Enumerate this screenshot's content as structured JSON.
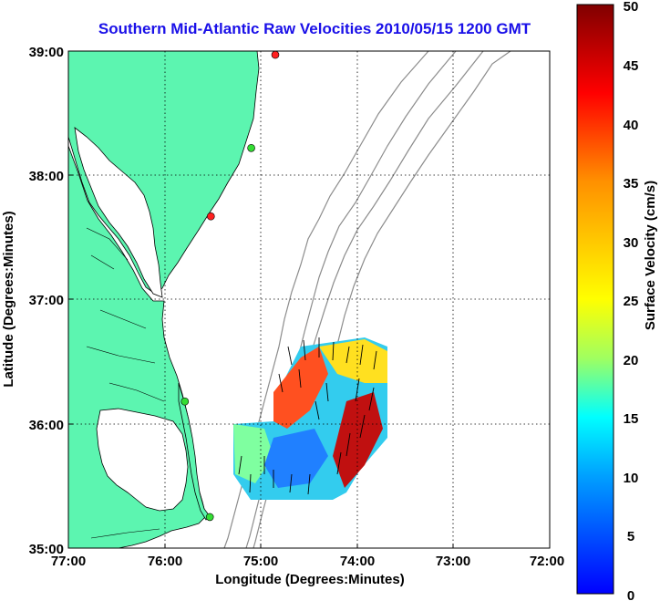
{
  "title": "Southern Mid-Atlantic Raw Velocities 2010/05/15 1200 GMT",
  "x_axis": {
    "label": "Longitude (Degrees:Minutes)",
    "ticks": [
      "77:00",
      "76:00",
      "75:00",
      "74:00",
      "73:00",
      "72:00"
    ]
  },
  "y_axis": {
    "label": "Latitude (Degrees:Minutes)",
    "ticks": [
      "39:00",
      "38:00",
      "37:00",
      "36:00",
      "35:00"
    ]
  },
  "colorbar": {
    "label": "Surface Velocity (cm/s)",
    "ticks": [
      "50",
      "45",
      "40",
      "35",
      "30",
      "25",
      "20",
      "15",
      "10",
      "5",
      "0"
    ],
    "min": 0,
    "max": 50,
    "colors": [
      "#0000ff",
      "#00a0ff",
      "#00ffff",
      "#a0ff60",
      "#ffff00",
      "#ff9000",
      "#ff0000",
      "#800000"
    ]
  },
  "map": {
    "land_color": "#5cf5b0",
    "water_color": "#ffffff",
    "coast_color": "#000000",
    "bathymetry_color": "#8c8c8c",
    "grid": "dotted",
    "lon_range": [
      -77,
      -72
    ],
    "lat_range": [
      35,
      39
    ],
    "stations": [
      {
        "lon": -74.85,
        "lat": 38.97,
        "color": "#ff2020"
      },
      {
        "lon": -75.1,
        "lat": 38.22,
        "color": "#33dd33"
      },
      {
        "lon": -75.52,
        "lat": 37.67,
        "color": "#ff2020"
      },
      {
        "lon": -75.79,
        "lat": 36.18,
        "color": "#33dd33"
      },
      {
        "lon": -75.53,
        "lat": 35.25,
        "color": "#33dd33"
      }
    ]
  }
}
